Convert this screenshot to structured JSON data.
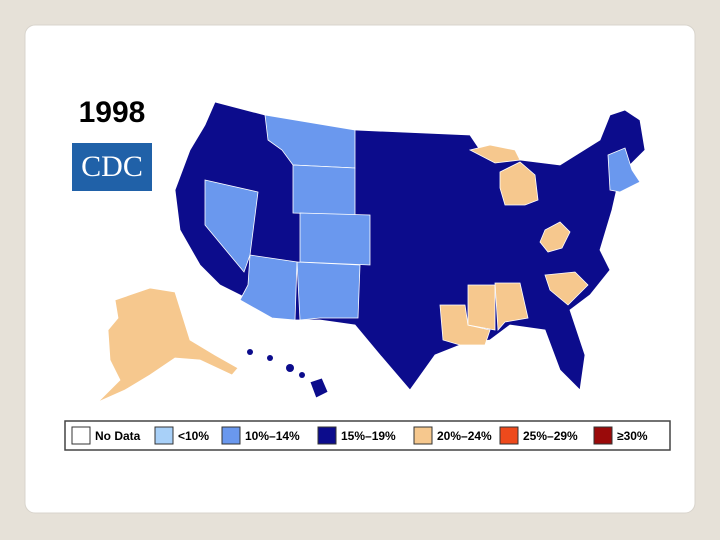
{
  "title": "1998",
  "logo": "CDC",
  "legend": [
    {
      "label": "No Data",
      "color": "#ffffff"
    },
    {
      "label": "<10%",
      "color": "#a8d0f8"
    },
    {
      "label": "10%–14%",
      "color": "#6a98ee"
    },
    {
      "label": "15%–19%",
      "color": "#0c0c8c"
    },
    {
      "label": "20%–24%",
      "color": "#f6c88e"
    },
    {
      "label": "25%–29%",
      "color": "#ee4a1c"
    },
    {
      "label": "≥30%",
      "color": "#9a0a0a"
    }
  ]
}
